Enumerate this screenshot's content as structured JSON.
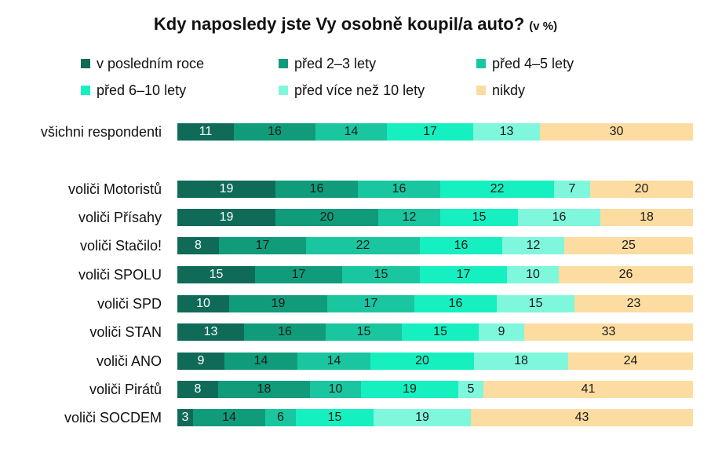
{
  "chart_data": {
    "type": "bar",
    "orientation": "horizontal",
    "stacked": true,
    "title": "Kdy naposledy jste Vy osobně koupil/a auto?",
    "title_unit": "(v %)",
    "categories": [
      "všichni respondenti",
      "voliči Motoristů",
      "voliči Přísahy",
      "voliči Stačilo!",
      "voliči SPOLU",
      "voliči SPD",
      "voliči STAN",
      "voliči ANO",
      "voliči Pirátů",
      "voliči SOCDEM"
    ],
    "series": [
      {
        "name": "v posledním roce",
        "color": "#0f6b58",
        "values": [
          11,
          19,
          19,
          8,
          15,
          10,
          13,
          9,
          8,
          3
        ]
      },
      {
        "name": "před 2–3 lety",
        "color": "#109c7a",
        "values": [
          16,
          16,
          20,
          17,
          17,
          19,
          16,
          14,
          18,
          14
        ]
      },
      {
        "name": "před 4–5 lety",
        "color": "#1ac6a0",
        "values": [
          14,
          16,
          12,
          22,
          15,
          17,
          15,
          14,
          10,
          6
        ]
      },
      {
        "name": "před 6–10 lety",
        "color": "#16f0c0",
        "values": [
          17,
          22,
          15,
          16,
          17,
          16,
          15,
          20,
          19,
          15
        ]
      },
      {
        "name": "před více než 10 lety",
        "color": "#7ff7dc",
        "values": [
          13,
          7,
          16,
          12,
          10,
          15,
          9,
          18,
          5,
          19
        ]
      },
      {
        "name": "nikdy",
        "color": "#fcdca0",
        "values": [
          30,
          20,
          18,
          25,
          26,
          23,
          33,
          24,
          41,
          43
        ]
      }
    ],
    "xlim": [
      0,
      100
    ],
    "legend_position": "top",
    "grid": false
  }
}
